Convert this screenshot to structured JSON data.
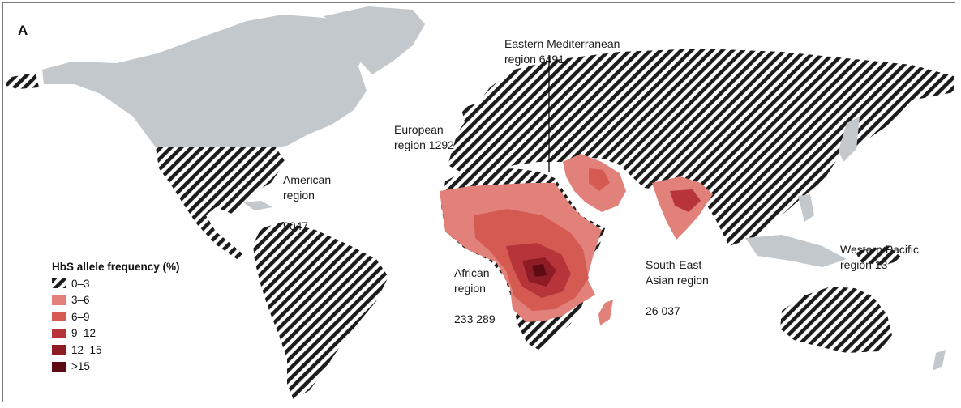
{
  "panel_label": "A",
  "legend": {
    "title": "HbS allele frequency (%)",
    "items": [
      {
        "label": "0–3",
        "style": "hatched",
        "color": "#1c1c1c"
      },
      {
        "label": "3–6",
        "color": "#e2807a"
      },
      {
        "label": "6–9",
        "color": "#d45a52"
      },
      {
        "label": "9–12",
        "color": "#b7353a"
      },
      {
        "label": "12–15",
        "color": "#8e1c24"
      },
      {
        "label": ">15",
        "color": "#5c0b12"
      }
    ]
  },
  "regions": {
    "american": {
      "name": "American\nregion",
      "count": "9047"
    },
    "european": {
      "name": "European\nregion 1292"
    },
    "eastern_med": {
      "name": "Eastern Mediterranean\nregion 6491"
    },
    "african": {
      "name": "African\nregion",
      "count": "233 289"
    },
    "south_east_asian": {
      "name": "South-East\nAsian region",
      "count": "26 037"
    },
    "western_pacific": {
      "name": "Western Pacific\nregion 13"
    }
  },
  "colors": {
    "no_data": "#c3c8cc",
    "hatch": "#1c1c1c",
    "background": "#ffffff"
  }
}
